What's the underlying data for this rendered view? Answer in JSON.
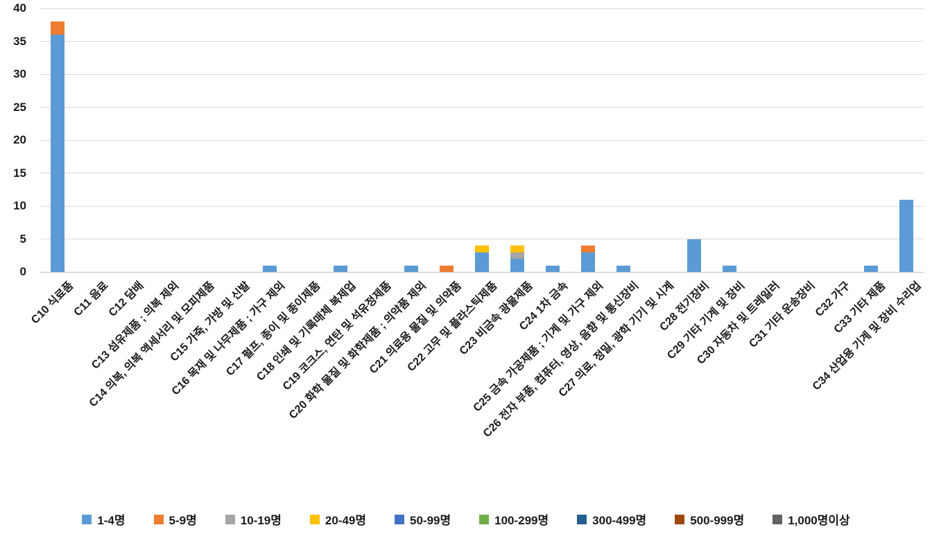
{
  "chart_data": {
    "type": "bar",
    "stacked": true,
    "title": "",
    "xlabel": "",
    "ylabel": "",
    "ylim": [
      0,
      40
    ],
    "ytick_step": 5,
    "ytick_labels": [
      "0",
      "5",
      "10",
      "15",
      "20",
      "25",
      "30",
      "35",
      "40"
    ],
    "grid": true,
    "legend_position": "bottom",
    "categories": [
      "C10 식료품",
      "C11 음료",
      "C12 담배",
      "C13 섬유제품 ; 의복 제외",
      "C14 의복, 의복 액세서리 및 모피제품",
      "C15 가죽, 가방 및 신발",
      "C16 목재 및 나무제품 ; 가구 제외",
      "C17 펄프, 종이 및 종이제품",
      "C18 인쇄 및 기록매체 복제업",
      "C19 코크스, 연탄 및 석유정제품",
      "C20 화학 물질 및 화학제품 ; 의약품 제외",
      "C21 의료용 물질 및 의약품",
      "C22 고무 및 플라스틱제품",
      "C23 비금속 광물제품",
      "C24 1차 금속",
      "C25 금속 가공제품 ; 기계 및 가구 제외",
      "C26 전자 부품, 컴퓨터, 영상, 음향 및 통신장비",
      "C27 의료, 정밀, 광학 기기 및 시계",
      "C28 전기장비",
      "C29 기타 기계 및 장비",
      "C30 자동차 및 트레일러",
      "C31 기타 운송장비",
      "C32 가구",
      "C33 기타 제품",
      "C34 산업용 기계 및 장비 수리업"
    ],
    "series": [
      {
        "name": "1-4명",
        "color": "#5B9BD5",
        "values": [
          36,
          0,
          0,
          0,
          0,
          0,
          1,
          0,
          1,
          0,
          1,
          0,
          3,
          2,
          1,
          3,
          1,
          0,
          5,
          1,
          0,
          0,
          0,
          1,
          11
        ]
      },
      {
        "name": "5-9명",
        "color": "#ED7D31",
        "values": [
          2,
          0,
          0,
          0,
          0,
          0,
          0,
          0,
          0,
          0,
          0,
          1,
          0,
          0,
          0,
          1,
          0,
          0,
          0,
          0,
          0,
          0,
          0,
          0,
          0
        ]
      },
      {
        "name": "10-19명",
        "color": "#A5A5A5",
        "values": [
          0,
          0,
          0,
          0,
          0,
          0,
          0,
          0,
          0,
          0,
          0,
          0,
          0,
          1,
          0,
          0,
          0,
          0,
          0,
          0,
          0,
          0,
          0,
          0,
          0
        ]
      },
      {
        "name": "20-49명",
        "color": "#FFC000",
        "values": [
          0,
          0,
          0,
          0,
          0,
          0,
          0,
          0,
          0,
          0,
          0,
          0,
          1,
          1,
          0,
          0,
          0,
          0,
          0,
          0,
          0,
          0,
          0,
          0,
          0
        ]
      },
      {
        "name": "50-99명",
        "color": "#4472C4",
        "values": [
          0,
          0,
          0,
          0,
          0,
          0,
          0,
          0,
          0,
          0,
          0,
          0,
          0,
          0,
          0,
          0,
          0,
          0,
          0,
          0,
          0,
          0,
          0,
          0,
          0
        ]
      },
      {
        "name": "100-299명",
        "color": "#70AD47",
        "values": [
          0,
          0,
          0,
          0,
          0,
          0,
          0,
          0,
          0,
          0,
          0,
          0,
          0,
          0,
          0,
          0,
          0,
          0,
          0,
          0,
          0,
          0,
          0,
          0,
          0
        ]
      },
      {
        "name": "300-499명",
        "color": "#255E91",
        "values": [
          0,
          0,
          0,
          0,
          0,
          0,
          0,
          0,
          0,
          0,
          0,
          0,
          0,
          0,
          0,
          0,
          0,
          0,
          0,
          0,
          0,
          0,
          0,
          0,
          0
        ]
      },
      {
        "name": "500-999명",
        "color": "#9E480E",
        "values": [
          0,
          0,
          0,
          0,
          0,
          0,
          0,
          0,
          0,
          0,
          0,
          0,
          0,
          0,
          0,
          0,
          0,
          0,
          0,
          0,
          0,
          0,
          0,
          0,
          0
        ]
      },
      {
        "name": "1,000명이상",
        "color": "#636363",
        "values": [
          0,
          0,
          0,
          0,
          0,
          0,
          0,
          0,
          0,
          0,
          0,
          0,
          0,
          0,
          0,
          0,
          0,
          0,
          0,
          0,
          0,
          0,
          0,
          0,
          0
        ]
      }
    ],
    "colors": {
      "gridline": "#D9D9D9",
      "axis_line": "#BFBFBF",
      "text": "#1A1A1A",
      "background": "#FFFFFF"
    }
  }
}
